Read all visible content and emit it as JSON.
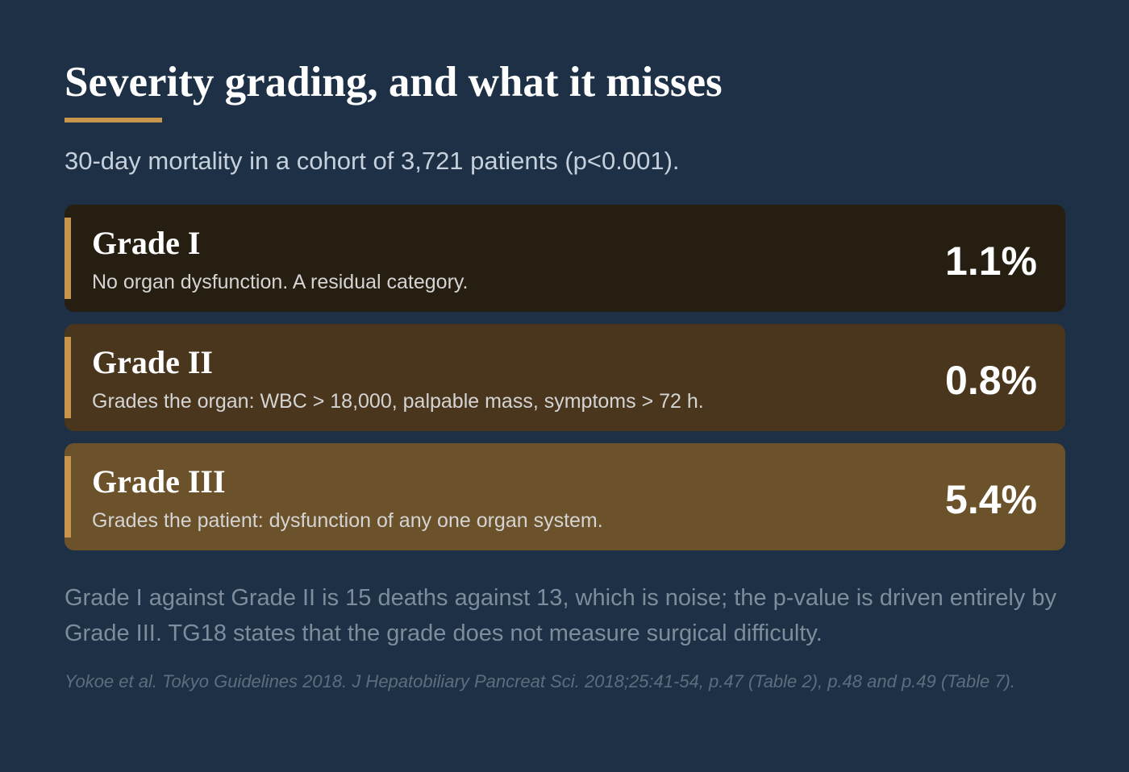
{
  "header": {
    "title": "Severity grading, and what it misses",
    "subtitle": "30-day mortality in a cohort of 3,721 patients (p<0.001)."
  },
  "grades": [
    {
      "name": "Grade I",
      "description": "No organ dysfunction. A residual category.",
      "mortality": "1.1%",
      "bg_color": "#261e10"
    },
    {
      "name": "Grade II",
      "description": "Grades the organ: WBC > 18,000, palpable mass, symptoms > 72 h.",
      "mortality": "0.8%",
      "bg_color": "#4a361d"
    },
    {
      "name": "Grade III",
      "description": "Grades the patient: dysfunction of any one organ system.",
      "mortality": "5.4%",
      "bg_color": "#6c522b"
    }
  ],
  "note": "Grade I against Grade II is 15 deaths against 13, which is noise; the p-value is driven entirely by Grade III. TG18 states that the grade does not measure surgical difficulty.",
  "source": "Yokoe et al. Tokyo Guidelines 2018. J Hepatobiliary Pancreat Sci. 2018;25:41-54, p.47 (Table 2), p.48 and p.49 (Table 7).",
  "colors": {
    "background": "#1d3045",
    "accent": "#c9954c"
  }
}
